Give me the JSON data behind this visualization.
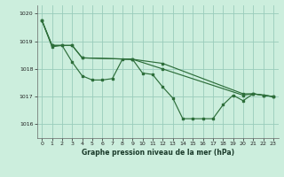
{
  "title": "Graphe pression niveau de la mer (hPa)",
  "background_color": "#cceedd",
  "grid_color": "#99ccbb",
  "line_color": "#2d6e3a",
  "xlim": [
    -0.5,
    23.5
  ],
  "ylim": [
    1015.5,
    1020.3
  ],
  "yticks": [
    1016,
    1017,
    1018,
    1019,
    1020
  ],
  "xticks": [
    0,
    1,
    2,
    3,
    4,
    5,
    6,
    7,
    8,
    9,
    10,
    11,
    12,
    13,
    14,
    15,
    16,
    17,
    18,
    19,
    20,
    21,
    22,
    23
  ],
  "series": [
    {
      "x": [
        0,
        1,
        2,
        3,
        4,
        5,
        6,
        7,
        8,
        9,
        10,
        11,
        12,
        13,
        14,
        15,
        16,
        17,
        18,
        19,
        20,
        21,
        22,
        23
      ],
      "y": [
        1019.75,
        1018.8,
        1018.85,
        1018.25,
        1017.75,
        1017.6,
        1017.6,
        1017.65,
        1018.35,
        1018.35,
        1017.85,
        1017.8,
        1017.35,
        1016.95,
        1016.2,
        1016.2,
        1016.2,
        1016.2,
        1016.7,
        1017.05,
        1016.85,
        1017.1,
        1017.05,
        1017.0
      ]
    },
    {
      "x": [
        0,
        1,
        3,
        4,
        9,
        12,
        20,
        21,
        22,
        23
      ],
      "y": [
        1019.75,
        1018.85,
        1018.85,
        1018.4,
        1018.35,
        1018.2,
        1017.1,
        1017.1,
        1017.05,
        1017.0
      ]
    },
    {
      "x": [
        0,
        1,
        2,
        3,
        4,
        9,
        12,
        20,
        21,
        22,
        23
      ],
      "y": [
        1019.75,
        1018.85,
        1018.85,
        1018.85,
        1018.4,
        1018.35,
        1018.0,
        1017.05,
        1017.1,
        1017.05,
        1017.0
      ]
    }
  ]
}
